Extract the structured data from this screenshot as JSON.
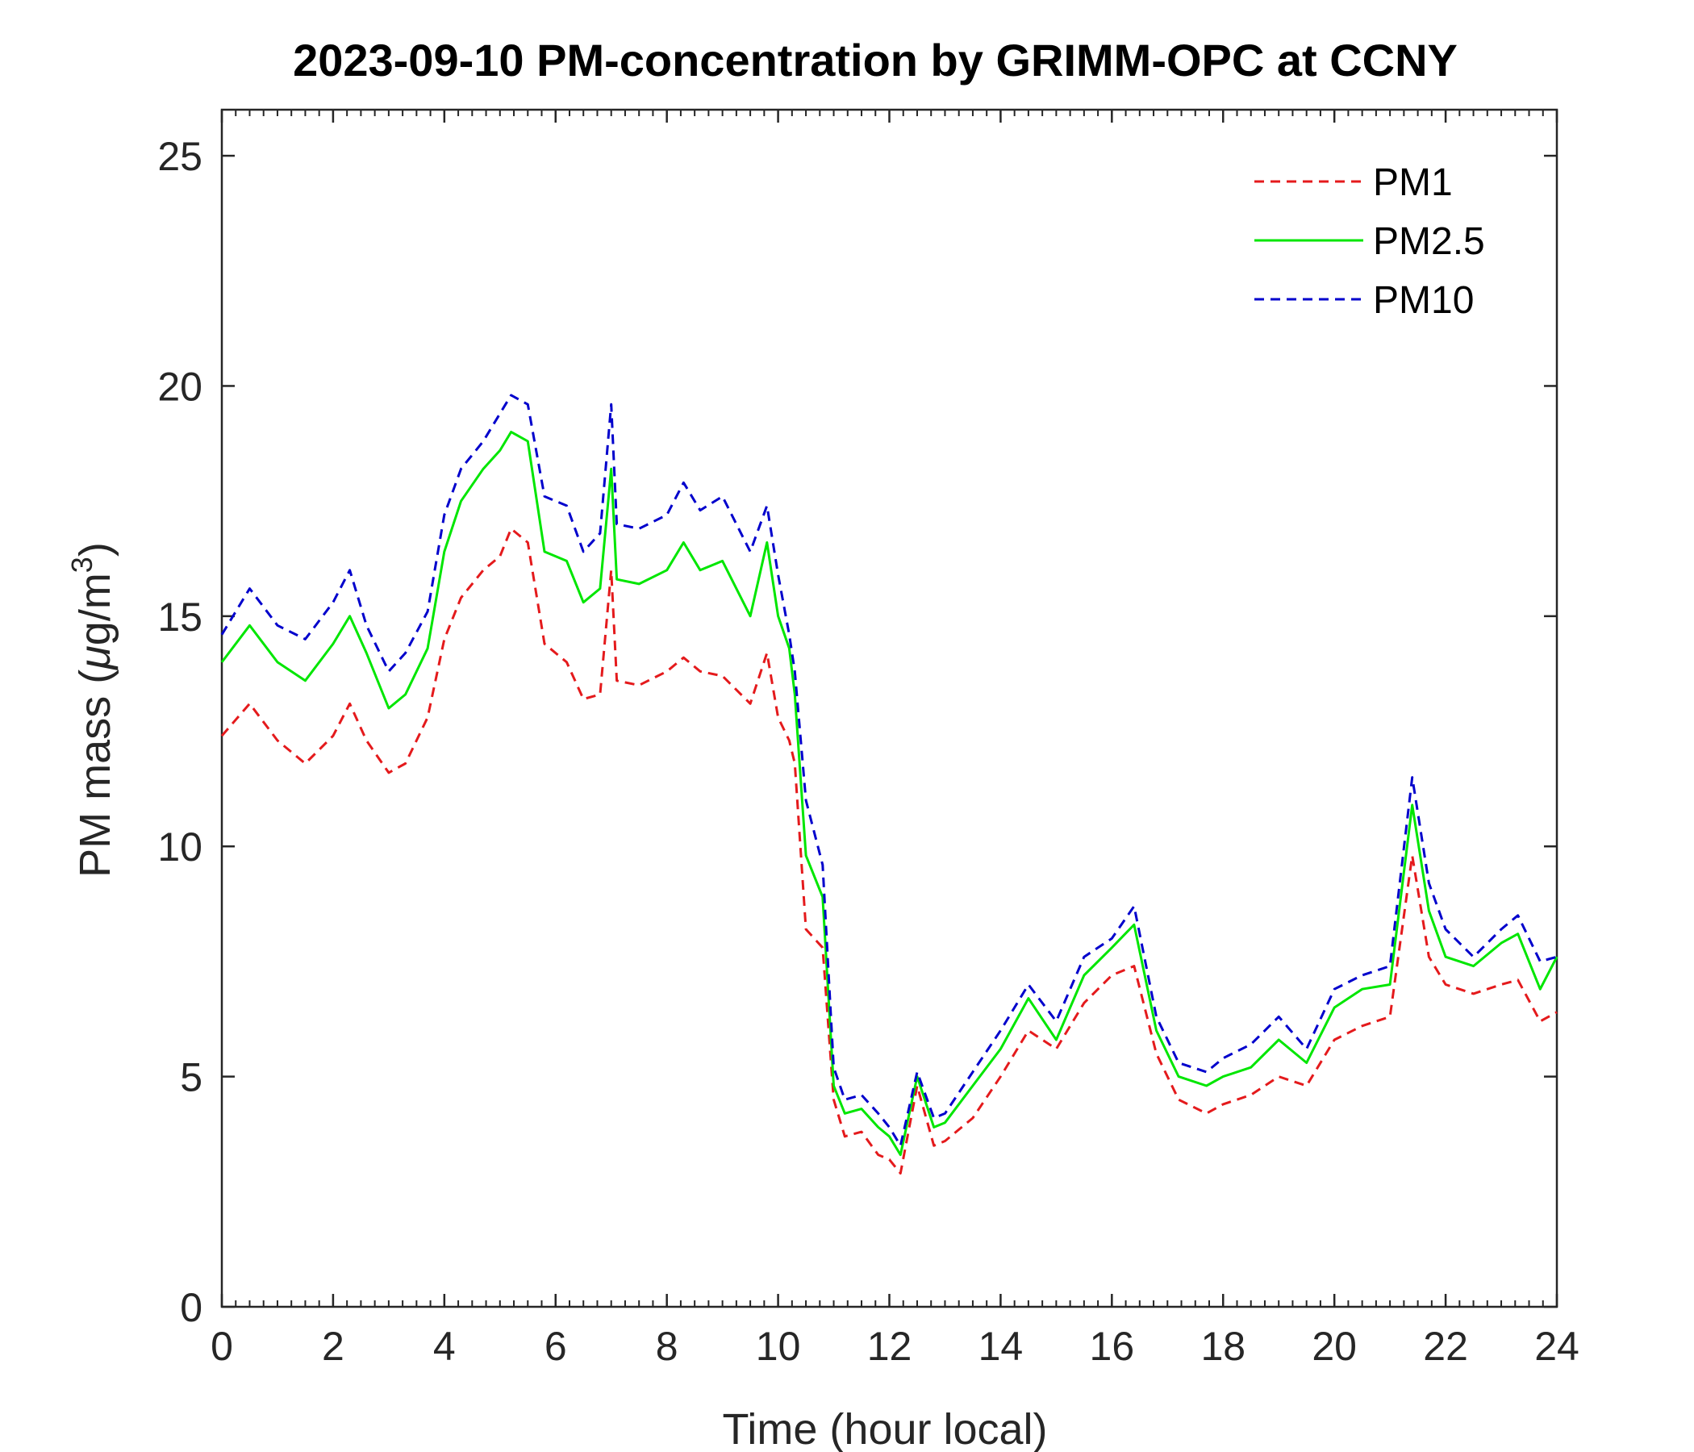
{
  "chart_data": {
    "type": "line",
    "title": "2023-09-10 PM-concentration by GRIMM-OPC at CCNY",
    "xlabel": "Time (hour local)",
    "ylabel_prefix": "PM mass (",
    "ylabel_mu": "μ",
    "ylabel_unit": "g/m",
    "ylabel_exp": "3",
    "ylabel_suffix": ")",
    "xlim": [
      0,
      24
    ],
    "ylim": [
      0,
      26
    ],
    "xticks": [
      "0",
      "2",
      "4",
      "6",
      "8",
      "10",
      "12",
      "14",
      "16",
      "18",
      "20",
      "22",
      "24"
    ],
    "yticks": [
      "0",
      "5",
      "10",
      "15",
      "20",
      "25"
    ],
    "legend_position": "top-right",
    "x": [
      0,
      0.5,
      1,
      1.5,
      2,
      2.3,
      2.6,
      3,
      3.3,
      3.7,
      4,
      4.3,
      4.7,
      5,
      5.2,
      5.5,
      5.8,
      6.2,
      6.5,
      6.8,
      7,
      7.1,
      7.5,
      8,
      8.3,
      8.6,
      9,
      9.5,
      9.8,
      10,
      10.2,
      10.3,
      10.5,
      10.8,
      11,
      11.2,
      11.5,
      11.8,
      12,
      12.2,
      12.5,
      12.8,
      13,
      13.5,
      14,
      14.5,
      15,
      15.5,
      16,
      16.4,
      16.8,
      17.2,
      17.7,
      18,
      18.5,
      19,
      19.5,
      20,
      20.5,
      21,
      21.4,
      21.7,
      22,
      22.5,
      23,
      23.3,
      23.7,
      24
    ],
    "series": [
      {
        "name": "PM1",
        "color": "#e41a1c",
        "dash": "dashed",
        "values": [
          12.4,
          13.1,
          12.3,
          11.8,
          12.4,
          13.1,
          12.3,
          11.6,
          11.8,
          12.8,
          14.5,
          15.4,
          16.0,
          16.3,
          16.9,
          16.6,
          14.4,
          14.0,
          13.2,
          13.3,
          16.0,
          13.6,
          13.5,
          13.8,
          14.1,
          13.8,
          13.7,
          13.1,
          14.2,
          12.8,
          12.3,
          11.8,
          8.2,
          7.8,
          4.5,
          3.7,
          3.8,
          3.3,
          3.2,
          2.9,
          4.8,
          3.5,
          3.6,
          4.1,
          5.0,
          6.0,
          5.6,
          6.6,
          7.2,
          7.4,
          5.5,
          4.5,
          4.2,
          4.4,
          4.6,
          5.0,
          4.8,
          5.8,
          6.1,
          6.3,
          9.8,
          7.6,
          7.0,
          6.8,
          7.0,
          7.1,
          6.2,
          6.4
        ]
      },
      {
        "name": "PM2.5",
        "color": "#00e600",
        "dash": "solid",
        "values": [
          14.0,
          14.8,
          14.0,
          13.6,
          14.4,
          15.0,
          14.2,
          13.0,
          13.3,
          14.3,
          16.4,
          17.5,
          18.2,
          18.6,
          19.0,
          18.8,
          16.4,
          16.2,
          15.3,
          15.6,
          18.2,
          15.8,
          15.7,
          16.0,
          16.6,
          16.0,
          16.2,
          15.0,
          16.6,
          15.0,
          14.3,
          13.3,
          9.8,
          8.9,
          4.8,
          4.2,
          4.3,
          3.9,
          3.7,
          3.3,
          5.0,
          3.9,
          4.0,
          4.8,
          5.6,
          6.7,
          5.8,
          7.2,
          7.8,
          8.3,
          6.0,
          5.0,
          4.8,
          5.0,
          5.2,
          5.8,
          5.3,
          6.5,
          6.9,
          7.0,
          10.9,
          8.6,
          7.6,
          7.4,
          7.9,
          8.1,
          6.9,
          7.6
        ]
      },
      {
        "name": "PM10",
        "color": "#0000cc",
        "dash": "dashed",
        "values": [
          14.6,
          15.6,
          14.8,
          14.5,
          15.3,
          16.0,
          14.8,
          13.8,
          14.2,
          15.1,
          17.2,
          18.2,
          18.8,
          19.4,
          19.8,
          19.6,
          17.6,
          17.4,
          16.4,
          16.8,
          19.6,
          17.0,
          16.9,
          17.2,
          17.9,
          17.3,
          17.6,
          16.4,
          17.4,
          15.9,
          14.6,
          13.8,
          11.0,
          9.6,
          5.2,
          4.5,
          4.6,
          4.2,
          3.9,
          3.5,
          5.1,
          4.1,
          4.2,
          5.1,
          6.0,
          7.0,
          6.2,
          7.6,
          8.0,
          8.7,
          6.3,
          5.3,
          5.1,
          5.4,
          5.7,
          6.3,
          5.6,
          6.9,
          7.2,
          7.4,
          11.5,
          9.2,
          8.2,
          7.6,
          8.2,
          8.5,
          7.5,
          7.6
        ]
      }
    ]
  }
}
